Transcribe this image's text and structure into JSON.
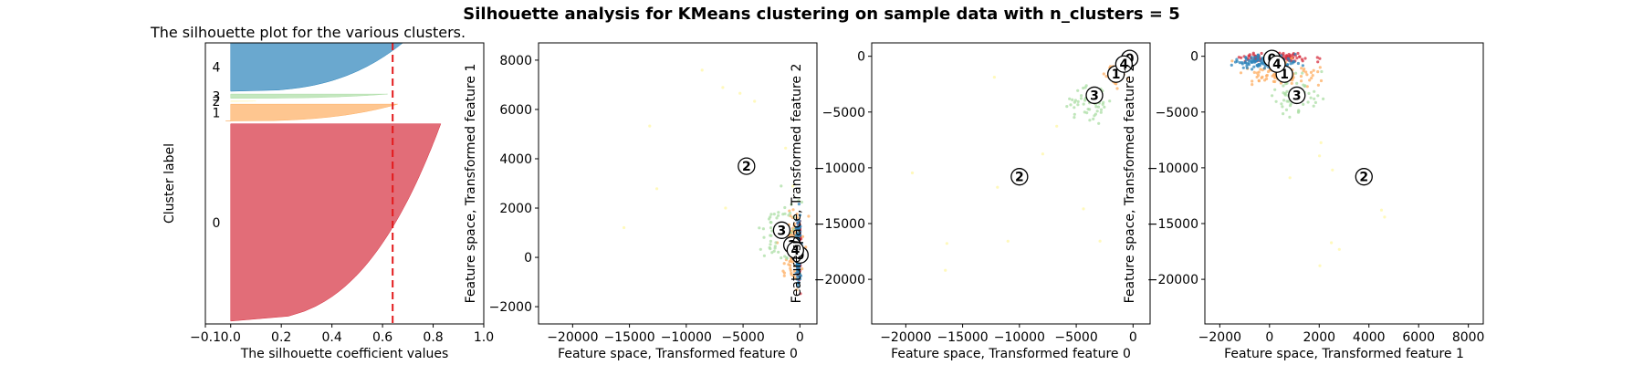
{
  "figure": {
    "suptitle": "Silhouette analysis for KMeans clustering on sample data with n_clusters = 5"
  },
  "colors": {
    "cluster_0": "#d62f3f",
    "cluster_1": "#fdae61",
    "cluster_2": "#fff7a6",
    "cluster_3": "#abdda4",
    "cluster_4": "#2b83ba",
    "threshold_line": "#e31a1c"
  },
  "chart_data": [
    {
      "type": "area",
      "title": "The silhouette plot for the various clusters.",
      "xlabel": "The silhouette coefficient values",
      "ylabel": "Cluster label",
      "xlim": [
        -0.1,
        1.0
      ],
      "xticks": [
        "−0.1",
        "0.0",
        "0.2",
        "0.4",
        "0.6",
        "0.8",
        "1.0"
      ],
      "xtick_values": [
        -0.1,
        0.0,
        0.2,
        0.4,
        0.6,
        0.8,
        1.0
      ],
      "ylim": [
        0,
        1000
      ],
      "average_silhouette": 0.64,
      "clusters": [
        {
          "label": "0",
          "y_start": 10,
          "y_end": 712,
          "max": 0.83,
          "min": 0.0
        },
        {
          "label": "1",
          "y_start": 722,
          "y_end": 782,
          "max": 0.66,
          "min": -0.02
        },
        {
          "label": "2",
          "y_start": 792,
          "y_end": 793,
          "max": 0.1,
          "min": 0.0
        },
        {
          "label": "3",
          "y_start": 803,
          "y_end": 818,
          "max": 0.62,
          "min": 0.0
        },
        {
          "label": "4",
          "y_start": 828,
          "y_end": 1000,
          "max": 0.68,
          "min": 0.0
        }
      ]
    },
    {
      "type": "scatter",
      "xlabel": "Feature space, Transformed feature 0",
      "ylabel": "Feature space, Transformed feature 1",
      "xlim": [
        -23000,
        1500
      ],
      "ylim": [
        -2700,
        8700
      ],
      "xticks": [
        "−20000",
        "−15000",
        "−10000",
        "−5000",
        "0"
      ],
      "xtick_values": [
        -20000,
        -15000,
        -10000,
        -5000,
        0
      ],
      "yticks": [
        "−2000",
        "0",
        "2000",
        "4000",
        "6000",
        "8000"
      ],
      "ytick_values": [
        -2000,
        0,
        2000,
        4000,
        6000,
        8000
      ],
      "centers": [
        {
          "label": "0",
          "x": 0,
          "y": 100
        },
        {
          "label": "1",
          "x": -700,
          "y": 500
        },
        {
          "label": "2",
          "x": -4700,
          "y": 3700
        },
        {
          "label": "3",
          "x": -1600,
          "y": 1100
        },
        {
          "label": "4",
          "x": -400,
          "y": 300
        }
      ],
      "series": [
        {
          "cluster": 0,
          "cx": -50,
          "cy": 300,
          "sx": 80,
          "sy": 500,
          "n": 130
        },
        {
          "cluster": 1,
          "cx": -600,
          "cy": 500,
          "sx": 450,
          "sy": 700,
          "n": 120
        },
        {
          "cluster": 2,
          "cx": -10000,
          "cy": 3700,
          "sx": 4500,
          "sy": 2000,
          "n": 10
        },
        {
          "cluster": 3,
          "cx": -1800,
          "cy": 1000,
          "sx": 900,
          "sy": 800,
          "n": 55
        },
        {
          "cluster": 4,
          "cx": -150,
          "cy": 200,
          "sx": 120,
          "sy": 600,
          "n": 130
        }
      ]
    },
    {
      "type": "scatter",
      "xlabel": "Feature space, Transformed feature 0",
      "ylabel": "Feature space, Transformed feature 2",
      "xlim": [
        -23000,
        1500
      ],
      "ylim": [
        -24000,
        1200
      ],
      "xticks": [
        "−20000",
        "−15000",
        "−10000",
        "−5000",
        "0"
      ],
      "xtick_values": [
        -20000,
        -15000,
        -10000,
        -5000,
        0
      ],
      "yticks": [
        "−20000",
        "−15000",
        "−10000",
        "−5000",
        "0"
      ],
      "ytick_values": [
        -20000,
        -15000,
        -10000,
        -5000,
        0
      ],
      "centers": [
        {
          "label": "0",
          "x": -300,
          "y": -200
        },
        {
          "label": "1",
          "x": -1500,
          "y": -1600
        },
        {
          "label": "2",
          "x": -10000,
          "y": -10800
        },
        {
          "label": "3",
          "x": -3400,
          "y": -3500
        },
        {
          "label": "4",
          "x": -800,
          "y": -700
        }
      ],
      "series": [
        {
          "cluster": 0,
          "cx": -200,
          "cy": -200,
          "sx": 150,
          "sy": 150,
          "n": 80
        },
        {
          "cluster": 1,
          "cx": -1500,
          "cy": -1600,
          "sx": 400,
          "sy": 400,
          "n": 80
        },
        {
          "cluster": 2,
          "cx": -10000,
          "cy": -10800,
          "sx": 5000,
          "sy": 5000,
          "n": 10
        },
        {
          "cluster": 3,
          "cx": -3800,
          "cy": -4200,
          "sx": 900,
          "sy": 900,
          "n": 50
        },
        {
          "cluster": 4,
          "cx": -700,
          "cy": -700,
          "sx": 250,
          "sy": 250,
          "n": 80
        }
      ]
    },
    {
      "type": "scatter",
      "xlabel": "Feature space, Transformed feature 1",
      "ylabel": "Feature space, Transformed feature 2",
      "xlim": [
        -2600,
        8600
      ],
      "ylim": [
        -24000,
        1200
      ],
      "xticks": [
        "−2000",
        "0",
        "2000",
        "4000",
        "6000",
        "8000"
      ],
      "xtick_values": [
        -2000,
        0,
        2000,
        4000,
        6000,
        8000
      ],
      "yticks": [
        "−20000",
        "−15000",
        "−10000",
        "−5000",
        "0"
      ],
      "ytick_values": [
        -20000,
        -15000,
        -10000,
        -5000,
        0
      ],
      "centers": [
        {
          "label": "0",
          "x": 100,
          "y": -200
        },
        {
          "label": "1",
          "x": 600,
          "y": -1600
        },
        {
          "label": "2",
          "x": 3800,
          "y": -10800
        },
        {
          "label": "3",
          "x": 1100,
          "y": -3500
        },
        {
          "label": "4",
          "x": 300,
          "y": -700
        }
      ],
      "series": [
        {
          "cluster": 0,
          "cx": 300,
          "cy": -150,
          "sx": 700,
          "sy": 250,
          "n": 110
        },
        {
          "cluster": 1,
          "cx": 500,
          "cy": -1500,
          "sx": 700,
          "sy": 500,
          "n": 110
        },
        {
          "cluster": 2,
          "cx": 3800,
          "cy": -10800,
          "sx": 2000,
          "sy": 5000,
          "n": 10
        },
        {
          "cluster": 3,
          "cx": 1000,
          "cy": -3500,
          "sx": 600,
          "sy": 1000,
          "n": 50
        },
        {
          "cluster": 4,
          "cx": -200,
          "cy": -500,
          "sx": 600,
          "sy": 300,
          "n": 110
        }
      ]
    }
  ]
}
